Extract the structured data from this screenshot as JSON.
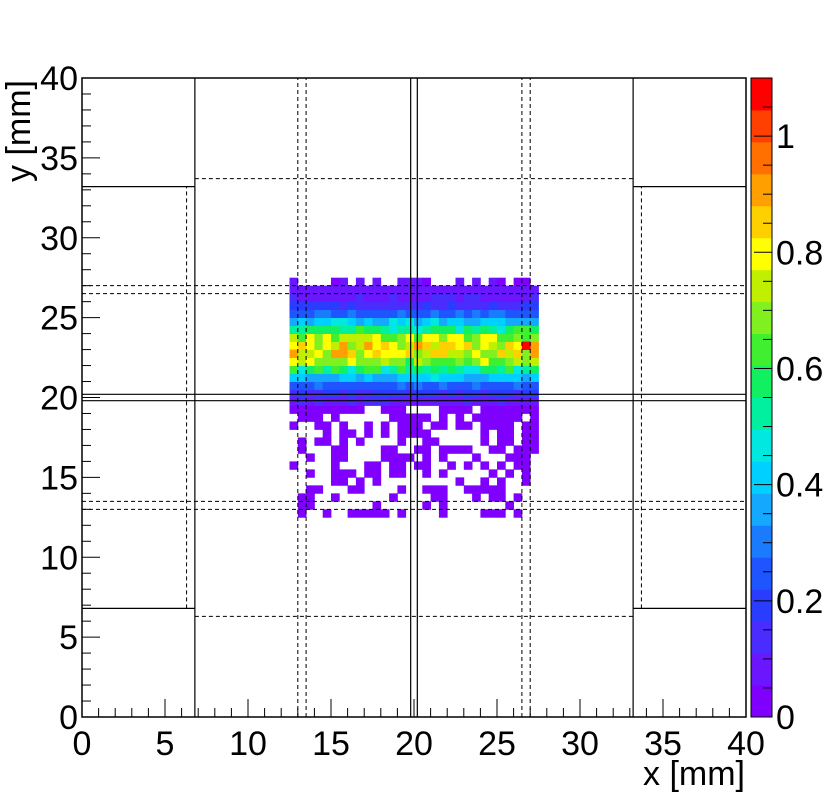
{
  "chart_data": {
    "type": "heatmap",
    "title": "",
    "xlabel": "x [mm]",
    "ylabel": "y [mm]",
    "xlim": [
      0,
      40
    ],
    "ylim": [
      0,
      40
    ],
    "x_ticks": [
      "0",
      "5",
      "10",
      "15",
      "20",
      "25",
      "30",
      "35",
      "40"
    ],
    "y_ticks": [
      "0",
      "5",
      "10",
      "15",
      "20",
      "25",
      "30",
      "35",
      "40"
    ],
    "colorbar": {
      "range": [
        0,
        1.1
      ],
      "ticks": [
        "0",
        "0.2",
        "0.4",
        "0.6",
        "0.8",
        "1"
      ],
      "palette": [
        "#7f00ff",
        "#6a16ff",
        "#4a2cff",
        "#2a3dff",
        "#1f55ff",
        "#1b7bff",
        "#15a8ff",
        "#00d0ff",
        "#00e8e0",
        "#00f0a0",
        "#10f060",
        "#40f030",
        "#80f020",
        "#c0f000",
        "#ffff00",
        "#ffd000",
        "#ffa000",
        "#ff7000",
        "#ff4000",
        "#ff0000"
      ]
    },
    "bin_size_mm": 0.5,
    "x_range": [
      12.5,
      27.5
    ],
    "dense_band": {
      "y_range": [
        19.5,
        27.5
      ],
      "peak_y": 23.0,
      "peak_value": 0.8,
      "max_value": 1.05
    },
    "sparse_tail": {
      "y_range": [
        12.5,
        19.5
      ],
      "value": 0.02
    },
    "solid_lines": [
      {
        "x1": 0,
        "y1": 33.2,
        "x2": 6.8,
        "y2": 33.2
      },
      {
        "x1": 33.2,
        "y1": 33.2,
        "x2": 40,
        "y2": 33.2
      },
      {
        "x1": 0,
        "y1": 6.8,
        "x2": 6.8,
        "y2": 6.8
      },
      {
        "x1": 33.2,
        "y1": 6.8,
        "x2": 40,
        "y2": 6.8
      },
      {
        "x1": 6.8,
        "y1": 0,
        "x2": 6.8,
        "y2": 40
      },
      {
        "x1": 33.2,
        "y1": 0,
        "x2": 33.2,
        "y2": 40
      },
      {
        "x1": 19.8,
        "y1": 0,
        "x2": 19.8,
        "y2": 40
      },
      {
        "x1": 20.2,
        "y1": 0,
        "x2": 20.2,
        "y2": 40
      },
      {
        "x1": 0,
        "y1": 19.8,
        "x2": 40,
        "y2": 19.8
      },
      {
        "x1": 0,
        "y1": 20.2,
        "x2": 40,
        "y2": 20.2
      }
    ],
    "dashed_lines": [
      {
        "x1": 13.0,
        "y1": 0,
        "x2": 13.0,
        "y2": 40
      },
      {
        "x1": 13.5,
        "y1": 0,
        "x2": 13.5,
        "y2": 40
      },
      {
        "x1": 26.5,
        "y1": 0,
        "x2": 26.5,
        "y2": 40
      },
      {
        "x1": 27.0,
        "y1": 0,
        "x2": 27.0,
        "y2": 40
      },
      {
        "x1": 6.8,
        "y1": 33.7,
        "x2": 33.2,
        "y2": 33.7
      },
      {
        "x1": 6.8,
        "y1": 6.3,
        "x2": 33.2,
        "y2": 6.3
      },
      {
        "x1": 0,
        "y1": 27.0,
        "x2": 40,
        "y2": 27.0
      },
      {
        "x1": 0,
        "y1": 26.5,
        "x2": 40,
        "y2": 26.5
      },
      {
        "x1": 0,
        "y1": 13.5,
        "x2": 40,
        "y2": 13.5
      },
      {
        "x1": 0,
        "y1": 13.0,
        "x2": 40,
        "y2": 13.0
      },
      {
        "x1": 6.3,
        "y1": 6.8,
        "x2": 6.3,
        "y2": 33.2
      },
      {
        "x1": 33.7,
        "y1": 6.8,
        "x2": 33.7,
        "y2": 33.2
      }
    ],
    "grid": false,
    "legend": "colorbar-right"
  }
}
